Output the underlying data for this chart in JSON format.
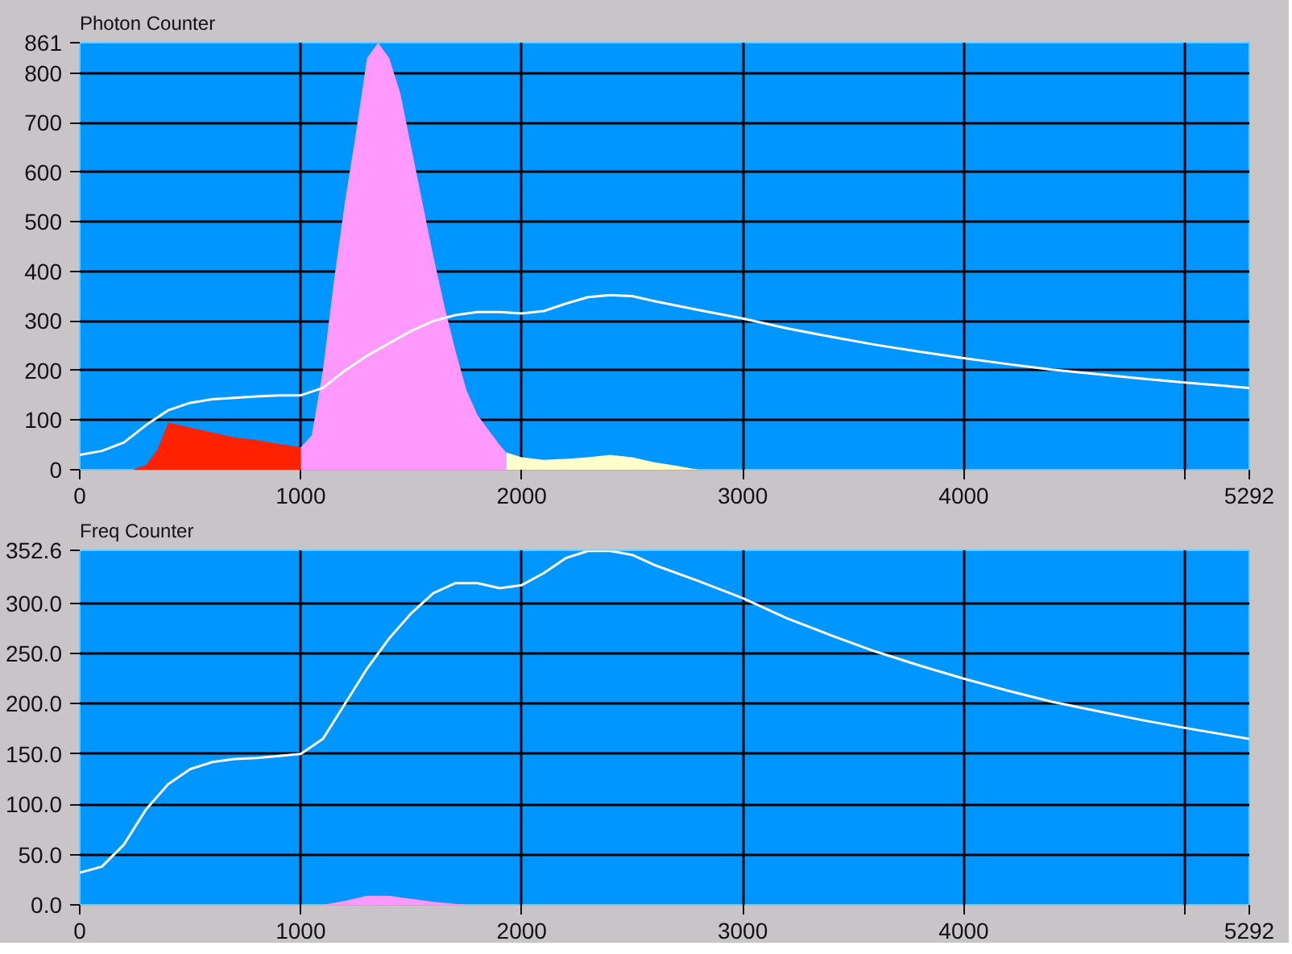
{
  "chart_data": [
    {
      "type": "area",
      "title": "Photon Counter",
      "grid": true,
      "xlim": [
        0,
        5292
      ],
      "ylim": [
        0,
        861
      ],
      "xticks": [
        0,
        1000,
        2000,
        3000,
        4000,
        {
          "value": 5000,
          "label": null
        },
        5292
      ],
      "yticks": [
        0,
        100,
        200,
        300,
        400,
        500,
        600,
        700,
        800,
        861
      ],
      "series": [
        {
          "color": "#ff2200",
          "x": [
            240,
            300,
            350,
            400,
            450,
            500,
            600,
            700,
            800,
            900,
            1000
          ],
          "values": [
            0,
            10,
            40,
            95,
            90,
            85,
            75,
            65,
            60,
            52,
            45
          ]
        },
        {
          "color": "#ff99ff",
          "x": [
            1000,
            1050,
            1100,
            1150,
            1200,
            1250,
            1300,
            1350,
            1400,
            1450,
            1500,
            1550,
            1600,
            1650,
            1700,
            1750,
            1800,
            1850,
            1900,
            1930
          ],
          "values": [
            45,
            70,
            200,
            380,
            540,
            680,
            830,
            861,
            830,
            760,
            650,
            540,
            430,
            330,
            240,
            160,
            110,
            80,
            50,
            35
          ]
        },
        {
          "color": "#ffffcc",
          "x": [
            1930,
            2000,
            2100,
            2200,
            2300,
            2400,
            2500,
            2600,
            2700,
            2800
          ],
          "values": [
            35,
            25,
            20,
            22,
            25,
            30,
            25,
            15,
            8,
            0
          ]
        },
        {
          "type": "line",
          "color": "#ffffff",
          "x": [
            0,
            100,
            200,
            300,
            400,
            500,
            600,
            700,
            800,
            900,
            1000,
            1100,
            1200,
            1300,
            1400,
            1500,
            1600,
            1700,
            1800,
            1900,
            2000,
            2100,
            2200,
            2300,
            2400,
            2500,
            2600,
            2800,
            3000,
            3200,
            3400,
            3600,
            3800,
            4000,
            4200,
            4400,
            4600,
            4800,
            5000,
            5292
          ],
          "values": [
            30,
            38,
            55,
            90,
            120,
            135,
            142,
            145,
            148,
            150,
            150,
            165,
            200,
            230,
            255,
            280,
            300,
            312,
            318,
            318,
            315,
            320,
            335,
            348,
            352,
            350,
            340,
            322,
            305,
            285,
            268,
            252,
            238,
            225,
            213,
            202,
            193,
            184,
            176,
            165
          ]
        }
      ]
    },
    {
      "type": "area",
      "title": "Freq Counter",
      "grid": true,
      "xlim": [
        0,
        5292
      ],
      "ylim": [
        0,
        352.6
      ],
      "xticks": [
        0,
        1000,
        2000,
        3000,
        4000,
        {
          "value": 5000,
          "label": null
        },
        5292
      ],
      "yticks": [
        {
          "value": 0,
          "label": "0.0"
        },
        {
          "value": 50,
          "label": "50.0"
        },
        {
          "value": 100,
          "label": "100.0"
        },
        {
          "value": 150,
          "label": "150.0"
        },
        {
          "value": 200,
          "label": "200.0"
        },
        {
          "value": 250,
          "label": "250.0"
        },
        {
          "value": 300,
          "label": "300.0"
        },
        352.6
      ],
      "series": [
        {
          "color": "#ff99ff",
          "x": [
            1100,
            1200,
            1300,
            1400,
            1500,
            1600,
            1700,
            1750
          ],
          "values": [
            0,
            4,
            9,
            9,
            6,
            3,
            1,
            0
          ]
        },
        {
          "type": "line",
          "color": "#ffffff",
          "x": [
            0,
            100,
            200,
            300,
            400,
            500,
            600,
            700,
            800,
            900,
            1000,
            1100,
            1200,
            1300,
            1400,
            1500,
            1600,
            1700,
            1800,
            1900,
            2000,
            2100,
            2200,
            2300,
            2400,
            2500,
            2600,
            2800,
            3000,
            3200,
            3400,
            3600,
            3800,
            4000,
            4200,
            4400,
            4600,
            4800,
            5000,
            5292
          ],
          "values": [
            32,
            38,
            60,
            95,
            120,
            135,
            142,
            145,
            146,
            148,
            150,
            165,
            200,
            235,
            265,
            290,
            310,
            320,
            320,
            315,
            318,
            330,
            345,
            352,
            352,
            348,
            338,
            322,
            305,
            285,
            268,
            252,
            238,
            225,
            213,
            202,
            193,
            184,
            176,
            165
          ]
        }
      ]
    }
  ]
}
